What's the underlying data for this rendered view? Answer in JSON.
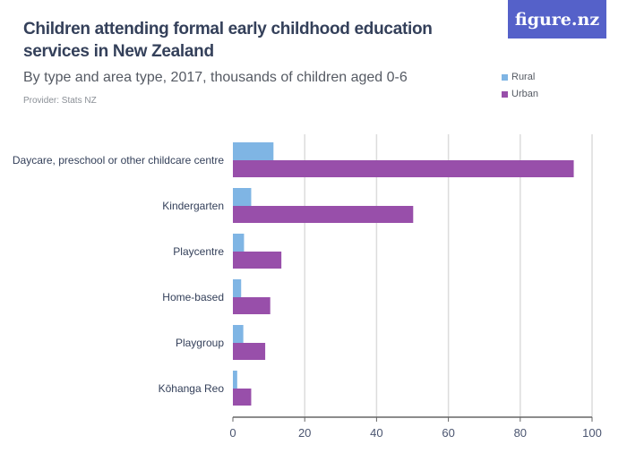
{
  "header": {
    "title": "Children attending formal early childhood education services in New Zealand",
    "subtitle": "By type and area type, 2017, thousands of children aged 0-6",
    "provider": "Provider: Stats NZ",
    "logo": "figure.nz",
    "logo_color": "#5561c9"
  },
  "chart_data": {
    "type": "bar",
    "orientation": "horizontal",
    "categories": [
      "Daycare, preschool or other childcare centre",
      "Kindergarten",
      "Playcentre",
      "Home-based",
      "Playgroup",
      "Kōhanga Reo"
    ],
    "series": [
      {
        "name": "Rural",
        "color": "#7fb5e4",
        "values": [
          11.3,
          5.1,
          3.1,
          2.3,
          2.9,
          1.2
        ]
      },
      {
        "name": "Urban",
        "color": "#984faa",
        "values": [
          94.9,
          50.2,
          13.5,
          10.4,
          9.0,
          5.1
        ]
      }
    ],
    "xlim": [
      0,
      100
    ],
    "xticks": [
      "0",
      "20",
      "40",
      "60",
      "80",
      "100"
    ],
    "grid": true,
    "legend": "top-right"
  }
}
